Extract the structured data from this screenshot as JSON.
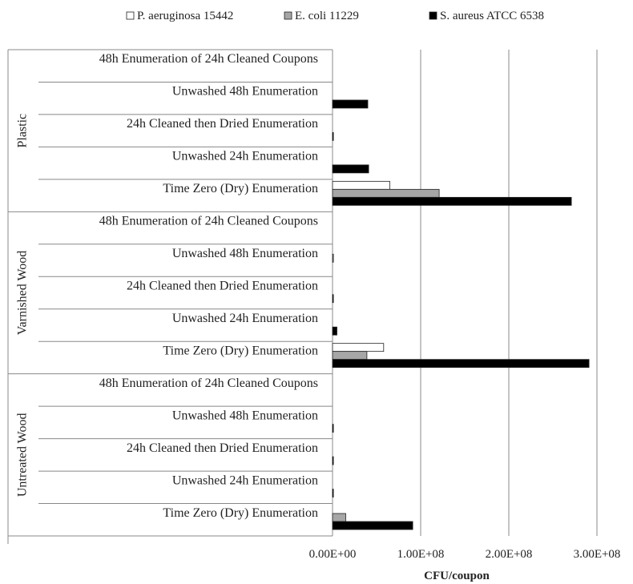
{
  "chart_data": {
    "type": "bar",
    "orientation": "horizontal",
    "xlabel": "CFU/coupon",
    "xlim": [
      0,
      300000000
    ],
    "x_ticks": [
      "0.00E+00",
      "1.00E+08",
      "2.00E+08",
      "3.00E+08"
    ],
    "x_tick_values": [
      0,
      100000000,
      200000000,
      300000000
    ],
    "grid": "vertical",
    "legend_position": "top",
    "groups": [
      {
        "label": "Plastic",
        "categories": [
          "48h Enumeration of 24h Cleaned Coupons",
          "Unwashed 48h Enumeration",
          "24h Cleaned then Dried Enumeration",
          "Unwashed 24h Enumeration",
          "Time Zero (Dry) Enumeration"
        ]
      },
      {
        "label": "Varnished Wood",
        "categories": [
          "48h Enumeration of 24h Cleaned Coupons",
          "Unwashed 48h Enumeration",
          "24h Cleaned then Dried Enumeration",
          "Unwashed 24h Enumeration",
          "Time Zero (Dry) Enumeration"
        ]
      },
      {
        "label": "Untreated Wood",
        "categories": [
          "48h Enumeration of 24h Cleaned Coupons",
          "Unwashed 48h Enumeration",
          "24h Cleaned then Dried Enumeration",
          "Unwashed 24h Enumeration",
          "Time Zero (Dry) Enumeration"
        ]
      }
    ],
    "series": [
      {
        "name": "P. aeruginosa 15442",
        "color": "#ffffff",
        "values": [
          0,
          0,
          0,
          0,
          65000000,
          0,
          0,
          0,
          0,
          58000000,
          0,
          0,
          0,
          0,
          0
        ]
      },
      {
        "name": "E. coli 11229",
        "color": "#a6a6a6",
        "values": [
          0,
          0,
          0,
          0,
          121000000,
          0,
          1000000,
          0,
          0,
          39000000,
          0,
          0,
          0,
          0,
          15000000
        ]
      },
      {
        "name": "S. aureus ATCC 6538",
        "color": "#000000",
        "values": [
          0,
          40000000,
          1000000,
          41000000,
          271000000,
          0,
          0,
          1000000,
          5000000,
          291000000,
          0,
          1000000,
          1000000,
          1000000,
          91000000
        ]
      }
    ]
  }
}
